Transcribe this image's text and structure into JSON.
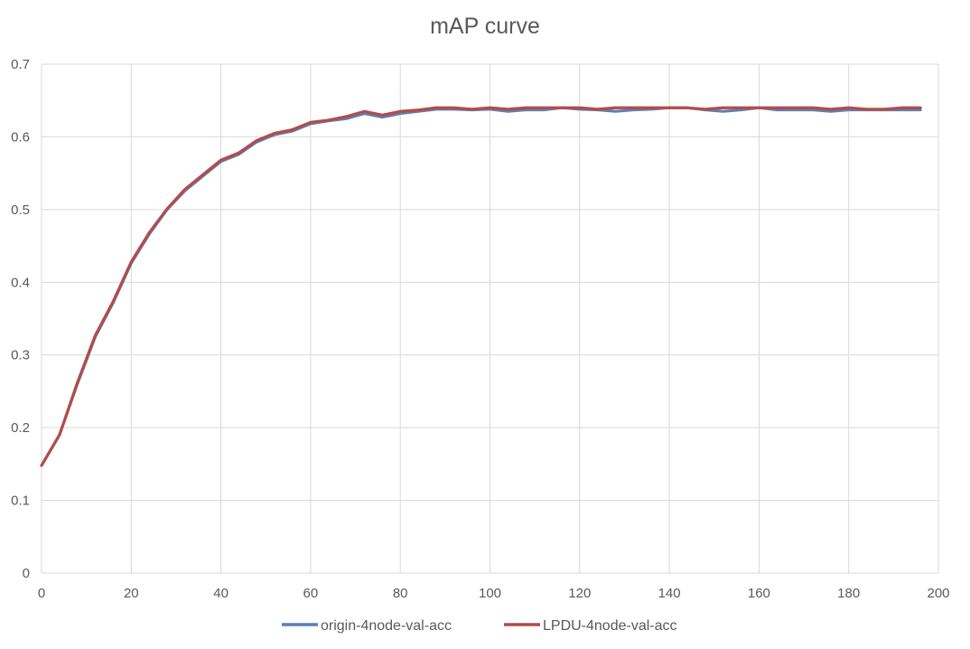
{
  "chart_data": {
    "type": "line",
    "title": "mAP curve",
    "xlabel": "",
    "ylabel": "",
    "xlim": [
      0,
      200
    ],
    "ylim": [
      0,
      0.7
    ],
    "x_ticks": [
      0,
      20,
      40,
      60,
      80,
      100,
      120,
      140,
      160,
      180,
      200
    ],
    "y_ticks": [
      0,
      0.1,
      0.2,
      0.3,
      0.4,
      0.5,
      0.6,
      0.7
    ],
    "grid": true,
    "legend_position": "bottom",
    "x": [
      0,
      4,
      8,
      12,
      16,
      20,
      24,
      28,
      32,
      36,
      40,
      44,
      48,
      52,
      56,
      60,
      64,
      68,
      72,
      76,
      80,
      84,
      88,
      92,
      96,
      100,
      104,
      108,
      112,
      116,
      120,
      124,
      128,
      132,
      136,
      140,
      144,
      148,
      152,
      156,
      160,
      164,
      168,
      172,
      176,
      180,
      184,
      188,
      192,
      196
    ],
    "series": [
      {
        "name": "origin-4node-val-acc",
        "color": "#5b7fb5",
        "values": [
          0.148,
          0.19,
          0.26,
          0.325,
          0.372,
          0.426,
          0.466,
          0.5,
          0.526,
          0.546,
          0.566,
          0.576,
          0.593,
          0.603,
          0.608,
          0.618,
          0.622,
          0.625,
          0.632,
          0.627,
          0.632,
          0.635,
          0.638,
          0.638,
          0.637,
          0.638,
          0.635,
          0.637,
          0.637,
          0.64,
          0.638,
          0.637,
          0.635,
          0.637,
          0.638,
          0.64,
          0.64,
          0.637,
          0.635,
          0.637,
          0.64,
          0.637,
          0.637,
          0.637,
          0.635,
          0.637,
          0.637,
          0.637,
          0.637,
          0.637
        ]
      },
      {
        "name": "LPDU-4node-val-acc",
        "color": "#b24c4a",
        "values": [
          0.148,
          0.19,
          0.262,
          0.327,
          0.374,
          0.428,
          0.468,
          0.501,
          0.528,
          0.548,
          0.568,
          0.578,
          0.595,
          0.605,
          0.61,
          0.62,
          0.623,
          0.628,
          0.635,
          0.63,
          0.635,
          0.637,
          0.64,
          0.64,
          0.638,
          0.64,
          0.638,
          0.64,
          0.64,
          0.64,
          0.64,
          0.638,
          0.64,
          0.64,
          0.64,
          0.64,
          0.64,
          0.638,
          0.64,
          0.64,
          0.64,
          0.64,
          0.64,
          0.64,
          0.638,
          0.64,
          0.638,
          0.638,
          0.64,
          0.64
        ]
      }
    ]
  }
}
